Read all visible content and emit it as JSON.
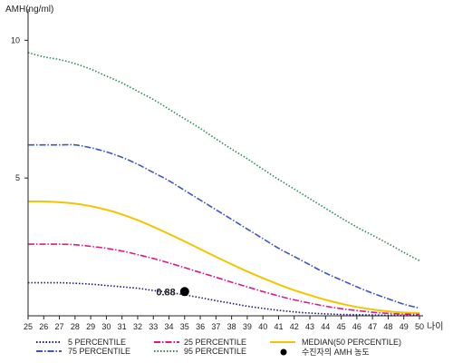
{
  "chart_data": {
    "type": "line",
    "ylabel": "AMH(ng/ml)",
    "xlabel": "나이",
    "x": [
      25,
      26,
      27,
      28,
      29,
      30,
      31,
      32,
      33,
      34,
      35,
      36,
      37,
      38,
      39,
      40,
      41,
      42,
      43,
      44,
      45,
      46,
      47,
      48,
      49,
      50
    ],
    "x_tick_labels": [
      "25",
      "26",
      "27",
      "28",
      "29",
      "30",
      "31",
      "32",
      "33",
      "34",
      "35",
      "36",
      "37",
      "38",
      "39",
      "40",
      "41",
      "42",
      "43",
      "44",
      "45",
      "46",
      "47",
      "48",
      "49",
      "50"
    ],
    "y_ticks": [
      5,
      10
    ],
    "y_tick_labels": [
      "5",
      "10"
    ],
    "ylim": [
      0,
      11
    ],
    "series": [
      {
        "key": "p95",
        "name": "95 PERCENTILE",
        "color": "#2e8b57",
        "dash": "1.5,2",
        "values": [
          9.55,
          9.4,
          9.3,
          9.15,
          8.95,
          8.7,
          8.45,
          8.15,
          7.85,
          7.5,
          7.15,
          6.8,
          6.42,
          6.05,
          5.7,
          5.32,
          4.95,
          4.6,
          4.25,
          3.9,
          3.55,
          3.22,
          2.92,
          2.62,
          2.3,
          2.0
        ]
      },
      {
        "key": "p75",
        "name": "75 PERCENTILE",
        "color": "#3a56c5",
        "dash": "7,2,1.5,2",
        "values": [
          6.2,
          6.2,
          6.2,
          6.2,
          6.1,
          5.95,
          5.75,
          5.5,
          5.2,
          4.9,
          4.55,
          4.2,
          3.85,
          3.5,
          3.15,
          2.8,
          2.45,
          2.15,
          1.85,
          1.55,
          1.3,
          1.05,
          0.82,
          0.62,
          0.42,
          0.28
        ]
      },
      {
        "key": "median",
        "name": "MEDIAN(50 PERCENTILE)",
        "color": "#f2c500",
        "dash": "",
        "values": [
          4.15,
          4.15,
          4.12,
          4.07,
          3.98,
          3.85,
          3.68,
          3.47,
          3.23,
          2.97,
          2.7,
          2.42,
          2.14,
          1.87,
          1.61,
          1.37,
          1.14,
          0.93,
          0.75,
          0.58,
          0.44,
          0.32,
          0.23,
          0.16,
          0.12,
          0.1
        ]
      },
      {
        "key": "p25",
        "name": "25 PERCENTILE",
        "color": "#e0198a",
        "dash": "7,2,1.5,2",
        "values": [
          2.6,
          2.6,
          2.6,
          2.58,
          2.52,
          2.45,
          2.35,
          2.22,
          2.08,
          1.92,
          1.75,
          1.57,
          1.4,
          1.22,
          1.05,
          0.88,
          0.72,
          0.58,
          0.46,
          0.35,
          0.26,
          0.19,
          0.13,
          0.09,
          0.06,
          0.05
        ]
      },
      {
        "key": "p5",
        "name": "5 PERCENTILE",
        "color": "#1a1a7a",
        "dash": "1.5,2",
        "values": [
          1.2,
          1.2,
          1.2,
          1.18,
          1.15,
          1.1,
          1.05,
          1.0,
          0.92,
          0.85,
          0.76,
          0.66,
          0.55,
          0.45,
          0.35,
          0.27,
          0.2,
          0.14,
          0.1,
          0.07,
          0.05,
          0.04,
          0.03,
          0.02,
          0.02,
          0.02
        ]
      }
    ],
    "annotation": {
      "x": 35,
      "y": 0.88,
      "label": "0.88",
      "legend": "수진자의 AMH 농도"
    },
    "legend_placement": "bottom",
    "grid": false
  }
}
